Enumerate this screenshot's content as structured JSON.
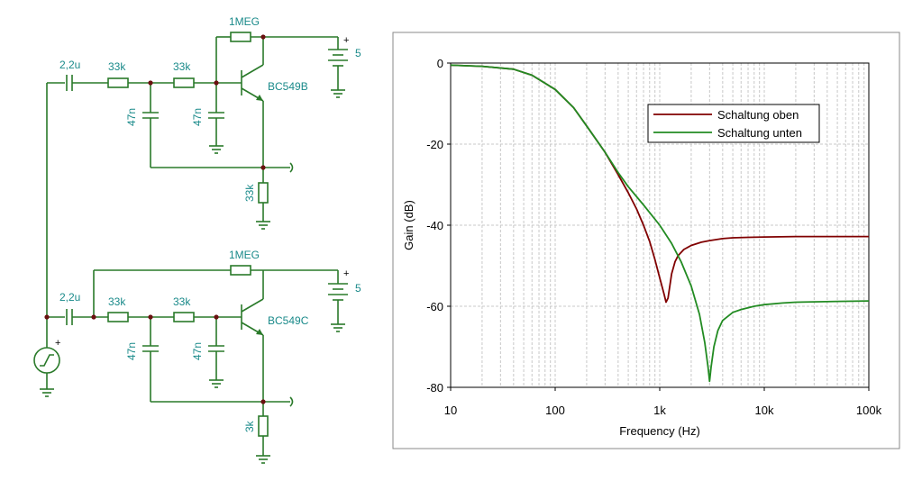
{
  "schematic": {
    "top": {
      "cap_in": "2,2u",
      "r1": "33k",
      "r2": "33k",
      "c1": "47n",
      "c2": "47n",
      "r_fb": "1MEG",
      "transistor": "BC549B",
      "r_e": "33k",
      "supply": "5",
      "supply_plus": "+"
    },
    "bottom": {
      "cap_in": "2,2u",
      "r1": "33k",
      "r2": "33k",
      "c1": "47n",
      "c2": "47n",
      "r_fb": "1MEG",
      "transistor": "BC549C",
      "r_e": "3k",
      "supply": "5",
      "supply_plus": "+"
    },
    "source_plus": "+"
  },
  "chart_data": {
    "type": "line",
    "xlabel": "Frequency (Hz)",
    "ylabel": "Gain (dB)",
    "xscale": "log",
    "xlim": [
      10,
      100000
    ],
    "ylim": [
      -80,
      0
    ],
    "xticks": [
      {
        "value": 10,
        "label": "10"
      },
      {
        "value": 100,
        "label": "100"
      },
      {
        "value": 1000,
        "label": "1k"
      },
      {
        "value": 10000,
        "label": "10k"
      },
      {
        "value": 100000,
        "label": "100k"
      }
    ],
    "yticks": [
      {
        "value": 0,
        "label": "0"
      },
      {
        "value": -20,
        "label": "-20"
      },
      {
        "value": -40,
        "label": "-40"
      },
      {
        "value": -60,
        "label": "-60"
      },
      {
        "value": -80,
        "label": "-80"
      }
    ],
    "grid": true,
    "legend_position": "top-right",
    "series": [
      {
        "name": "Schaltung oben",
        "color": "#800000",
        "x": [
          10,
          20,
          40,
          60,
          100,
          150,
          200,
          300,
          400,
          500,
          600,
          700,
          800,
          900,
          1000,
          1100,
          1150,
          1200,
          1250,
          1300,
          1400,
          1500,
          1700,
          2000,
          2500,
          3000,
          4000,
          5000,
          7000,
          10000,
          20000,
          50000,
          100000
        ],
        "y": [
          -0.5,
          -0.8,
          -1.5,
          -3,
          -6.5,
          -11,
          -15.5,
          -22,
          -27.5,
          -32,
          -36,
          -40,
          -44,
          -48.5,
          -53,
          -57,
          -59,
          -58,
          -55,
          -52,
          -49,
          -47.5,
          -46,
          -45,
          -44.2,
          -43.8,
          -43.3,
          -43.1,
          -43,
          -42.9,
          -42.8,
          -42.8,
          -42.8
        ]
      },
      {
        "name": "Schaltung unten",
        "color": "#228b22",
        "x": [
          10,
          20,
          40,
          60,
          100,
          150,
          200,
          300,
          400,
          500,
          700,
          1000,
          1300,
          1600,
          2000,
          2400,
          2700,
          2900,
          3000,
          3100,
          3300,
          3600,
          4000,
          5000,
          6000,
          8000,
          10000,
          15000,
          20000,
          50000,
          100000
        ],
        "y": [
          -0.5,
          -0.8,
          -1.5,
          -3,
          -6.5,
          -11,
          -15.5,
          -22,
          -27,
          -30.5,
          -35,
          -40,
          -44.5,
          -49,
          -55,
          -62,
          -69,
          -75,
          -78.5,
          -75,
          -70,
          -66,
          -63.5,
          -61.5,
          -60.8,
          -60,
          -59.6,
          -59.2,
          -59,
          -58.8,
          -58.7
        ]
      }
    ]
  }
}
